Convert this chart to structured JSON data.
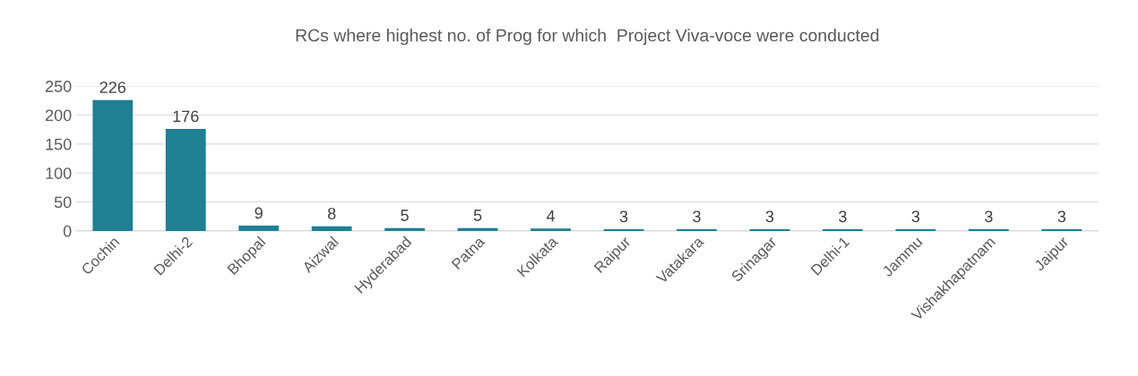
{
  "chart_data": {
    "type": "bar",
    "title": "RCs where highest no. of Prog for which  Project Viva-voce were conducted",
    "categories": [
      "Cochin",
      "Delhi-2",
      "Bhopal",
      "Aizwal",
      "Hyderabad",
      "Patna",
      "Kolkata",
      "Raipur",
      "Vatakara",
      "Srinagar",
      "Delhi-1",
      "Jammu",
      "Vishakhapatnam",
      "Jaipur"
    ],
    "values": [
      226,
      176,
      9,
      8,
      5,
      5,
      4,
      3,
      3,
      3,
      3,
      3,
      3,
      3
    ],
    "color": "#1f7f93",
    "ylim": [
      0,
      250
    ],
    "yticks": [
      0,
      50,
      100,
      150,
      200,
      250
    ],
    "grid": "y",
    "data_labels": true
  }
}
